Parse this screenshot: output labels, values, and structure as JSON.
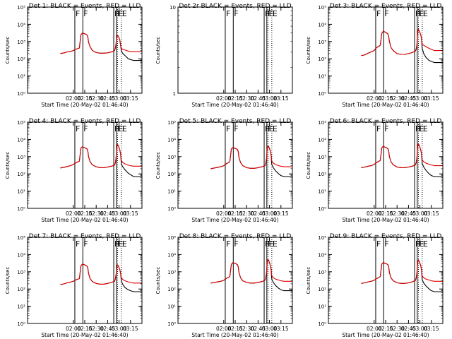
{
  "colors": {
    "events": "#000000",
    "lld": "#e00000",
    "axis": "#000000"
  },
  "chart_data": {
    "type": "line",
    "x_axis": {
      "label": "Start Time (20-May-02 01:46:40)",
      "range_minutes": [
        -60,
        90
      ],
      "ticks": [
        {
          "value": 0,
          "label": "02:00"
        },
        {
          "value": 15,
          "label": "02:15"
        },
        {
          "value": 30,
          "label": "02:30"
        },
        {
          "value": 45,
          "label": "02:45"
        },
        {
          "value": 60,
          "label": "03:00"
        },
        {
          "value": 75,
          "label": "03:15"
        }
      ]
    },
    "y_axis": {
      "label": "Counts/sec",
      "scale": "log",
      "ylim": [
        1,
        100000
      ],
      "ticks": [
        {
          "value": 1,
          "label": "10⁰"
        },
        {
          "value": 10,
          "label": "10¹"
        },
        {
          "value": 100,
          "label": "10²"
        },
        {
          "value": 1000,
          "label": "10³"
        },
        {
          "value": 10000,
          "label": "10⁴"
        },
        {
          "value": 100000,
          "label": "10⁵"
        }
      ]
    },
    "time_data": [
      -17,
      -12,
      -8,
      -4,
      0,
      2,
      5,
      8,
      10,
      12,
      14,
      16,
      18,
      19,
      20,
      22,
      25,
      30,
      35,
      40,
      45,
      50,
      54,
      55,
      56,
      57,
      58,
      59,
      60,
      61,
      62,
      63,
      65,
      68,
      72,
      75,
      79,
      80,
      85,
      90
    ],
    "panels": [
      {
        "title": "Det 1: BLACK = Events, RED = LLD",
        "ylabel": "Counts/sec",
        "xlabel": "Start Time (20-May-02 01:46:40)",
        "series": [
          {
            "name": "Events",
            "color": "#000000",
            "values": [
              200,
              220,
              250,
              265,
              300,
              340,
              380,
              420,
              2500,
              3100,
              2900,
              2700,
              2400,
              1900,
              900,
              500,
              300,
              230,
              210,
              210,
              220,
              250,
              300,
              400,
              700,
              2000,
              2300,
              2000,
              1600,
              1200,
              600,
              280,
              200,
              150,
              100,
              90,
              80,
              80,
              80,
              80
            ]
          },
          {
            "name": "LLD",
            "color": "#e00000",
            "values": [
              200,
              220,
              250,
              265,
              300,
              340,
              380,
              420,
              2500,
              3100,
              2900,
              2700,
              2400,
              1900,
              900,
              500,
              300,
              230,
              210,
              210,
              220,
              250,
              300,
              400,
              700,
              2000,
              2300,
              2000,
              1600,
              1200,
              600,
              400,
              350,
              320,
              280,
              260,
              260,
              260,
              260,
              260
            ]
          }
        ],
        "markers": {
          "F": [
            2,
            12.5,
            53,
            56.5
          ],
          "E": [
            58,
            63
          ]
        }
      },
      {
        "title": "Det 2r BLACK = Events, RED = LLD",
        "ylabel": "Counts/sec",
        "xlabel": "Start Time (20-May-02 01:46:40)",
        "y_axis": {
          "ylim": [
            1,
            10
          ],
          "ticks": [
            {
              "value": 1,
              "label": "1"
            },
            {
              "value": 10,
              "label": "10"
            }
          ]
        },
        "series": [],
        "markers": {
          "F": [
            2,
            12.5,
            53,
            56.5
          ],
          "E": [
            58,
            63
          ]
        }
      },
      {
        "title": "Det 3: BLACK = Events, RED = LLD",
        "ylabel": "Counts/sec",
        "xlabel": "Start Time (20-May-02 01:46:40)",
        "series": [
          {
            "name": "Events",
            "color": "#000000",
            "values": [
              150,
              170,
              210,
              250,
              300,
              400,
              500,
              600,
              3000,
              4000,
              3600,
              3200,
              2800,
              2000,
              1000,
              450,
              300,
              200,
              180,
              180,
              200,
              230,
              280,
              350,
              600,
              3500,
              5000,
              4200,
              3200,
              2500,
              1500,
              400,
              200,
              120,
              80,
              70,
              60,
              60,
              60,
              60
            ]
          },
          {
            "name": "LLD",
            "color": "#e00000",
            "values": [
              150,
              170,
              210,
              250,
              300,
              400,
              500,
              600,
              3000,
              4000,
              3600,
              3200,
              2800,
              2000,
              1000,
              450,
              300,
              200,
              180,
              180,
              200,
              230,
              280,
              350,
              600,
              3500,
              5000,
              4200,
              3200,
              2500,
              1500,
              700,
              600,
              500,
              400,
              350,
              300,
              300,
              300,
              300
            ]
          }
        ],
        "markers": {
          "F": [
            2,
            12.5,
            53,
            56.5
          ],
          "E": [
            58,
            63
          ]
        }
      },
      {
        "title": "Det 4: BLACK = Events, RED = LLD",
        "ylabel": "Counts/sec",
        "xlabel": "Start Time (20-May-02 01:46:40)",
        "series": [
          {
            "name": "Events",
            "color": "#000000",
            "values": [
              220,
              240,
              270,
              300,
              350,
              400,
              480,
              550,
              3200,
              3800,
              3400,
              3100,
              2800,
              2200,
              1000,
              500,
              330,
              260,
              230,
              230,
              250,
              280,
              320,
              420,
              800,
              3800,
              5000,
              4400,
              3300,
              2400,
              1400,
              380,
              250,
              170,
              110,
              90,
              70,
              70,
              70,
              70
            ]
          },
          {
            "name": "LLD",
            "color": "#e00000",
            "values": [
              220,
              240,
              270,
              300,
              350,
              400,
              480,
              550,
              3200,
              3800,
              3400,
              3100,
              2800,
              2200,
              1000,
              500,
              330,
              260,
              230,
              230,
              250,
              280,
              320,
              420,
              800,
              3800,
              5000,
              4400,
              3300,
              2400,
              1400,
              600,
              450,
              380,
              320,
              300,
              280,
              280,
              280,
              280
            ]
          }
        ],
        "markers": {
          "F": [
            2,
            12.5,
            53,
            56.5
          ],
          "E": [
            58,
            63
          ]
        }
      },
      {
        "title": "Det 5: BLACK = Events, RED = LLD",
        "ylabel": "Counts/sec",
        "xlabel": "Start Time (20-May-02 01:46:40)",
        "series": [
          {
            "name": "Events",
            "color": "#000000",
            "values": [
              200,
              220,
              240,
              260,
              300,
              360,
              420,
              500,
              2800,
              3400,
              3100,
              2900,
              2600,
              2000,
              900,
              450,
              300,
              230,
              210,
              210,
              230,
              260,
              300,
              400,
              700,
              3000,
              4300,
              3700,
              2900,
              2100,
              1300,
              350,
              230,
              150,
              100,
              80,
              70,
              70,
              70,
              70
            ]
          },
          {
            "name": "LLD",
            "color": "#e00000",
            "values": [
              200,
              220,
              240,
              260,
              300,
              360,
              420,
              500,
              2800,
              3400,
              3100,
              2900,
              2600,
              2000,
              900,
              450,
              300,
              230,
              210,
              210,
              230,
              260,
              300,
              400,
              700,
              3000,
              4300,
              3700,
              2900,
              2100,
              1300,
              550,
              420,
              350,
              300,
              280,
              260,
              260,
              260,
              260
            ]
          }
        ],
        "markers": {
          "F": [
            2,
            12.5,
            53,
            56.5
          ],
          "E": [
            58,
            63
          ]
        }
      },
      {
        "title": "Det 6: BLACK = Events, RED = LLD",
        "ylabel": "Counts/sec",
        "xlabel": "Start Time (20-May-02 01:46:40)",
        "series": [
          {
            "name": "Events",
            "color": "#000000",
            "values": [
              230,
              250,
              280,
              300,
              350,
              420,
              500,
              600,
              3300,
              4000,
              3600,
              3300,
              2900,
              2200,
              1000,
              500,
              330,
              250,
              230,
              230,
              250,
              280,
              330,
              430,
              800,
              4000,
              5500,
              4600,
              3400,
              2500,
              1500,
              400,
              250,
              160,
              100,
              80,
              70,
              70,
              70,
              70
            ]
          },
          {
            "name": "LLD",
            "color": "#e00000",
            "values": [
              230,
              250,
              280,
              300,
              350,
              420,
              500,
              600,
              3300,
              4000,
              3600,
              3300,
              2900,
              2200,
              1000,
              500,
              330,
              250,
              230,
              230,
              250,
              280,
              330,
              430,
              800,
              4000,
              5500,
              4600,
              3400,
              2500,
              1500,
              650,
              500,
              420,
              360,
              330,
              300,
              300,
              300,
              300
            ]
          }
        ],
        "markers": {
          "F": [
            2,
            12.5,
            53,
            56.5
          ],
          "E": [
            58,
            63
          ]
        }
      },
      {
        "title": "Det 7: BLACK = Events, RED = LLD",
        "ylabel": "Counts/sec",
        "xlabel": "Start Time (20-May-02 01:46:40)",
        "series": [
          {
            "name": "Events",
            "color": "#000000",
            "values": [
              180,
              200,
              230,
              250,
              280,
              320,
              360,
              400,
              2200,
              2800,
              2600,
              2400,
              2100,
              1700,
              800,
              400,
              270,
              210,
              190,
              190,
              210,
              240,
              280,
              370,
              650,
              1800,
              2500,
              2200,
              1700,
              1300,
              800,
              280,
              180,
              120,
              90,
              80,
              70,
              70,
              70,
              70
            ]
          },
          {
            "name": "LLD",
            "color": "#e00000",
            "values": [
              180,
              200,
              230,
              250,
              280,
              320,
              360,
              400,
              2200,
              2800,
              2600,
              2400,
              2100,
              1700,
              800,
              400,
              270,
              210,
              190,
              190,
              210,
              240,
              280,
              370,
              650,
              1800,
              2500,
              2200,
              1700,
              1300,
              800,
              450,
              350,
              300,
              260,
              240,
              220,
              220,
              220,
              220
            ]
          }
        ],
        "markers": {
          "F": [
            2,
            12.5,
            53,
            56.5
          ],
          "E": [
            58,
            63
          ]
        }
      },
      {
        "title": "Det 8: BLACK = Events, RED = LLD",
        "ylabel": "Counts/sec",
        "xlabel": "Start Time (20-May-02 01:46:40)",
        "series": [
          {
            "name": "Events",
            "color": "#000000",
            "values": [
              220,
              240,
              260,
              280,
              320,
              380,
              450,
              520,
              2700,
              3400,
              3100,
              2900,
              2600,
              2000,
              900,
              450,
              300,
              240,
              220,
              220,
              240,
              270,
              320,
              430,
              800,
              3800,
              5200,
              4500,
              3300,
              2400,
              1400,
              380,
              240,
              160,
              110,
              90,
              80,
              80,
              80,
              80
            ]
          },
          {
            "name": "LLD",
            "color": "#e00000",
            "values": [
              220,
              240,
              260,
              280,
              320,
              380,
              450,
              520,
              2700,
              3400,
              3100,
              2900,
              2600,
              2000,
              900,
              450,
              300,
              240,
              220,
              220,
              240,
              270,
              320,
              430,
              800,
              3800,
              5200,
              4500,
              3300,
              2400,
              1400,
              600,
              450,
              380,
              330,
              300,
              280,
              280,
              280,
              280
            ]
          }
        ],
        "markers": {
          "F": [
            2,
            12.5,
            53,
            56.5
          ],
          "E": [
            58,
            63
          ]
        }
      },
      {
        "title": "Det 9: BLACK = Events, RED = LLD",
        "ylabel": "Counts/sec",
        "xlabel": "Start Time (20-May-02 01:46:40)",
        "series": [
          {
            "name": "Events",
            "color": "#000000",
            "values": [
              210,
              230,
              260,
              280,
              320,
              380,
              440,
              520,
              2800,
              3400,
              3100,
              2900,
              2600,
              2000,
              900,
              450,
              300,
              230,
              210,
              210,
              230,
              260,
              310,
              420,
              800,
              3500,
              4800,
              4100,
              3100,
              2300,
              1300,
              350,
              220,
              150,
              100,
              80,
              70,
              70,
              70,
              70
            ]
          },
          {
            "name": "LLD",
            "color": "#e00000",
            "values": [
              210,
              230,
              260,
              280,
              320,
              380,
              440,
              520,
              2800,
              3400,
              3100,
              2900,
              2600,
              2000,
              900,
              450,
              300,
              230,
              210,
              210,
              230,
              260,
              310,
              420,
              800,
              3500,
              4800,
              4100,
              3100,
              2300,
              1300,
              580,
              450,
              380,
              330,
              300,
              280,
              280,
              280,
              280
            ]
          }
        ],
        "markers": {
          "F": [
            2,
            12.5,
            53,
            56.5
          ],
          "E": [
            58,
            63
          ]
        }
      }
    ]
  }
}
